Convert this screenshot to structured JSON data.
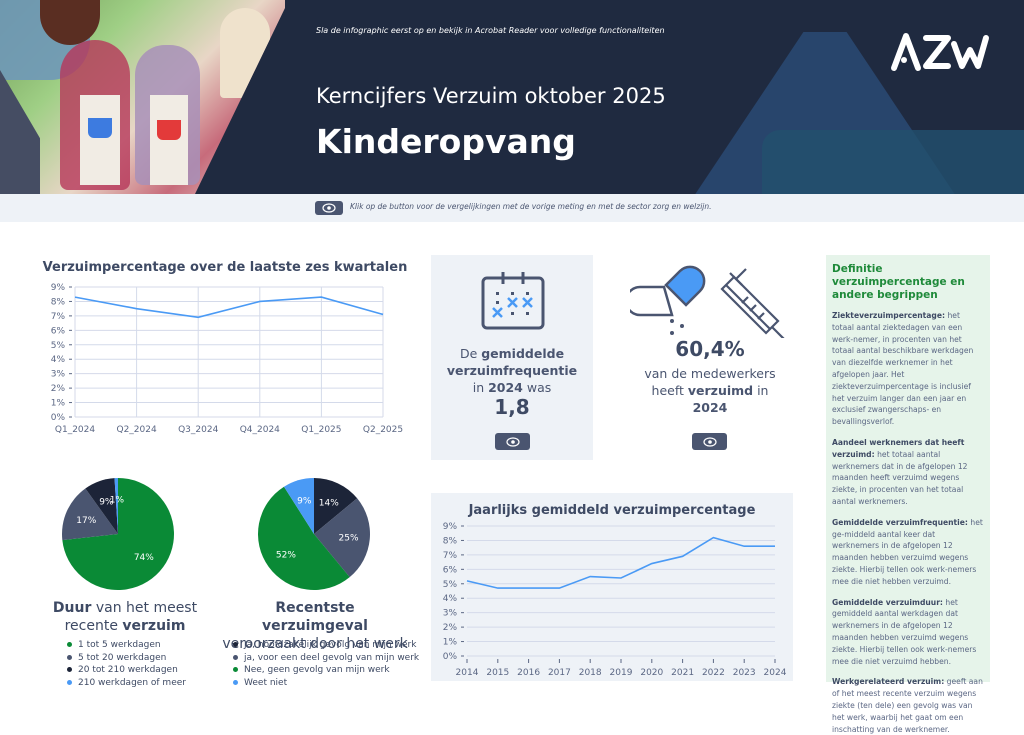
{
  "header": {
    "hint": "Sla de infographic eerst op en bekijk in Acrobat Reader voor volledige functionaliteiten",
    "subtitle": "Kerncijfers Verzuim oktober 2025",
    "title": "Kinderopvang",
    "logo": "AZW"
  },
  "infobar": {
    "text": "Klik op de button voor de vergelijkingen met de vorige meting en met de sector zorg en welzijn.",
    "icon": "eye-icon"
  },
  "colors": {
    "navy": "#1f2a40",
    "slate": "#4a5570",
    "green": "#0a8a36",
    "blue": "#4a9af5",
    "dark": "#1c2438",
    "grey_blue": "#4a5570",
    "line": "#4a9af5",
    "defs_bg": "#e6f4ea",
    "card_bg": "#eef2f7"
  },
  "frequency_card": {
    "line1_pre": "De ",
    "line1_bold": "gemiddelde",
    "line2_bold": "verzuimfrequentie",
    "line3_pre": "in ",
    "line3_bold": "2024",
    "line3_post": " was",
    "value": "1,8",
    "icon": "calendar-icon"
  },
  "absence_card": {
    "value": "60,4%",
    "line1": "van de medewerkers",
    "line2_pre": "heeft ",
    "line2_bold": "verzuimd",
    "line2_post": " in",
    "line3_bold": "2024",
    "icons": [
      "pill-icon",
      "syringe-icon"
    ]
  },
  "pie_duration": {
    "title_bold1": "Duur",
    "title_rest1": " van het meest",
    "title_rest2": "recente ",
    "title_bold2": "verzuim"
  },
  "pie_cause": {
    "title1": "Recentste verzuimgeval",
    "title2": "veroorzaakt door het werk"
  },
  "definitions": {
    "title": "Definitie verzuimpercentage en andere begrippen",
    "items": [
      {
        "term": "Ziekteverzuimpercentage:",
        "text": " het totaal aantal ziektedagen van een werk-nemer, in procenten van het totaal aantal beschikbare werkdagen van diezelfde werknemer in het afgelopen jaar. Het ziekteverzuimpercentage is inclusief het verzuim langer dan een jaar en exclusief zwangerschaps- en bevallingsverlof."
      },
      {
        "term": "Aandeel werknemers dat heeft verzuimd:",
        "text": " het totaal aantal werknemers dat in de afgelopen 12 maanden heeft verzuimd wegens ziekte, in procenten van het totaal aantal werknemers."
      },
      {
        "term": "Gemiddelde verzuimfrequentie:",
        "text": " het ge-middeld aantal keer dat werknemers in de afgelopen 12 maanden hebben verzuimd wegens ziekte. Hierbij tellen ook werk-nemers mee die niet hebben verzuimd."
      },
      {
        "term": "Gemiddelde verzuimduur:",
        "text": " het gemiddeld aantal werkdagen dat werknemers in de afgelopen 12 maanden hebben verzuimd wegens ziekte. Hierbij tellen ook werk-nemers mee die niet verzuimd hebben."
      },
      {
        "term": "Werkgerelateerd verzuim:",
        "text": " geeft aan of het meest recente verzuim wegens ziekte (ten dele) een gevolg was van het werk, waarbij het gaat om een inschatting van de werknemer."
      }
    ]
  },
  "chart_data": [
    {
      "type": "line",
      "title": "Verzuimpercentage over de laatste zes kwartalen",
      "categories": [
        "Q1_2024",
        "Q2_2024",
        "Q3_2024",
        "Q4_2024",
        "Q1_2025",
        "Q2_2025"
      ],
      "values": [
        8.3,
        7.5,
        6.9,
        8.0,
        8.3,
        7.1
      ],
      "xlabel": "",
      "ylabel": "",
      "ylim": [
        0,
        9
      ],
      "yticks": [
        "0%",
        "1%",
        "2%",
        "3%",
        "4%",
        "5%",
        "6%",
        "7%",
        "8%",
        "9%"
      ],
      "grid": true
    },
    {
      "type": "pie",
      "title": "Duur van het meest recente verzuim",
      "labels": [
        "1 tot 5 werkdagen",
        "5 tot 20 werkdagen",
        "20 tot 210 werkdagen",
        "210 werkdagen of meer"
      ],
      "values": [
        74,
        17,
        9,
        1
      ],
      "display": [
        "74%",
        "17%",
        "9%",
        "1%"
      ],
      "colors": [
        "#0a8a36",
        "#4a5570",
        "#1c2438",
        "#4a9af5"
      ],
      "legend_position": "bottom"
    },
    {
      "type": "pie",
      "title": "Recentste verzuimgeval veroorzaakt door het werk",
      "labels": [
        "Ja, hoofdzakelijk gevolg van mijn werk",
        "ja, voor een deel gevolg van mijn werk",
        "Nee, geen gevolg van mijn werk",
        "Weet niet"
      ],
      "values": [
        14,
        25,
        52,
        9
      ],
      "display": [
        "14%",
        "25%",
        "52%",
        "9%"
      ],
      "colors": [
        "#1c2438",
        "#4a5570",
        "#0a8a36",
        "#4a9af5"
      ],
      "legend_position": "bottom"
    },
    {
      "type": "line",
      "title": "Jaarlijks gemiddeld verzuimpercentage",
      "categories": [
        "2014",
        "2015",
        "2016",
        "2017",
        "2018",
        "2019",
        "2020",
        "2021",
        "2022",
        "2023",
        "2024"
      ],
      "values": [
        5.2,
        4.7,
        4.7,
        4.7,
        5.5,
        5.4,
        6.4,
        6.9,
        8.2,
        7.6,
        7.6
      ],
      "xlabel": "",
      "ylabel": "",
      "ylim": [
        0,
        9
      ],
      "yticks": [
        "0%",
        "1%",
        "2%",
        "3%",
        "4%",
        "5%",
        "6%",
        "7%",
        "8%",
        "9%"
      ],
      "grid": true
    }
  ]
}
